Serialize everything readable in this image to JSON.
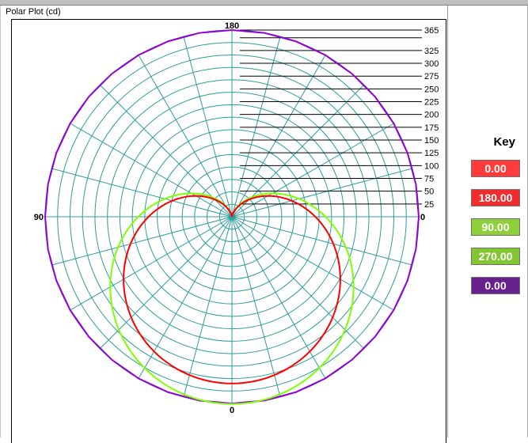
{
  "plot": {
    "title": "Polar Plot (cd)"
  },
  "key": {
    "title": "Key",
    "items": [
      {
        "label": "0.00",
        "color": "#ff3b3b"
      },
      {
        "label": "180.00",
        "color": "#f02c2c"
      },
      {
        "label": "90.00",
        "color": "#8ecf3a"
      },
      {
        "label": "270.00",
        "color": "#84c534"
      },
      {
        "label": "0.00",
        "color": "#6a1f8f"
      }
    ]
  },
  "chart_data": {
    "type": "polar",
    "title": "Polar Plot (cd)",
    "angle_labels": [
      "180",
      "90",
      "0",
      "0"
    ],
    "radial_ticks": [
      25,
      50,
      75,
      100,
      125,
      150,
      175,
      200,
      225,
      250,
      275,
      300,
      325,
      365
    ],
    "r_max": 365,
    "grid": true,
    "series": [
      {
        "name": "0.00",
        "color": "#ff0000",
        "shape": "cardioid",
        "peak": 326
      },
      {
        "name": "180.00",
        "color": "#ff0000",
        "shape": "cardioid",
        "peak": 326
      },
      {
        "name": "90.00",
        "color": "#7fff00",
        "shape": "cardioid",
        "peak": 366
      },
      {
        "name": "270.00",
        "color": "#7fff00",
        "shape": "cardioid",
        "peak": 366
      },
      {
        "name": "0.00",
        "color": "#9400d3",
        "shape": "circle",
        "value": 365
      }
    ]
  }
}
